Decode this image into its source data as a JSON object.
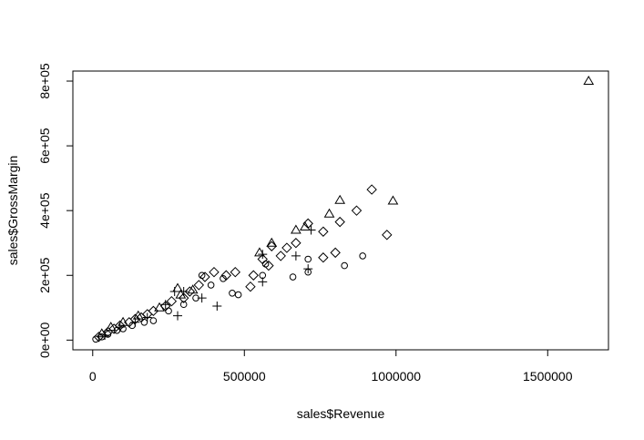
{
  "chart_data": {
    "type": "scatter",
    "x_label": "sales$Revenue",
    "y_label": "sales$GrossMargin",
    "xlim": [
      -65400,
      1700400
    ],
    "ylim": [
      -30000,
      831000
    ],
    "xticks": [
      0,
      500000,
      1000000,
      1500000
    ],
    "yticks": [
      {
        "value": 0,
        "label": "0e+00"
      },
      {
        "value": 200000,
        "label": "2e+05"
      },
      {
        "value": 400000,
        "label": "4e+05"
      },
      {
        "value": 600000,
        "label": "6e+05"
      },
      {
        "value": 800000,
        "label": "8e+05"
      }
    ],
    "color": "#000000",
    "series": [
      {
        "marker": "triangle",
        "x": [
          1635000,
          990000,
          815000,
          780000,
          700000,
          670000,
          590000,
          550000,
          330000,
          290000,
          280000,
          220000,
          150000,
          100000,
          60000,
          30000
        ],
        "y": [
          800000,
          430000,
          432000,
          390000,
          350000,
          340000,
          300000,
          270000,
          155000,
          140000,
          160000,
          100000,
          75000,
          55000,
          40000,
          20000
        ]
      },
      {
        "marker": "diamond",
        "x": [
          920000,
          970000,
          870000,
          815000,
          800000,
          760000,
          760000,
          710000,
          670000,
          640000,
          620000,
          590000,
          580000,
          560000,
          530000,
          520000,
          470000,
          440000,
          400000,
          370000,
          350000,
          320000,
          300000,
          260000,
          240000,
          200000,
          180000,
          160000,
          140000,
          120000,
          90000,
          70000,
          50000,
          20000
        ],
        "y": [
          465000,
          325000,
          400000,
          365000,
          270000,
          335000,
          255000,
          360000,
          300000,
          285000,
          260000,
          290000,
          230000,
          250000,
          200000,
          165000,
          210000,
          200000,
          210000,
          195000,
          170000,
          150000,
          130000,
          120000,
          105000,
          90000,
          80000,
          70000,
          65000,
          55000,
          45000,
          35000,
          25000,
          10000
        ]
      },
      {
        "marker": "circle",
        "x": [
          890000,
          830000,
          710000,
          710000,
          660000,
          570000,
          560000,
          480000,
          460000,
          430000,
          390000,
          360000,
          340000,
          300000,
          250000,
          200000,
          170000,
          130000,
          100000,
          80000,
          50000,
          30000,
          10000
        ],
        "y": [
          260000,
          230000,
          210000,
          250000,
          195000,
          235000,
          200000,
          140000,
          145000,
          190000,
          170000,
          200000,
          130000,
          110000,
          90000,
          60000,
          55000,
          45000,
          35000,
          30000,
          18000,
          10000,
          3000
        ]
      },
      {
        "marker": "plus",
        "x": [
          720000,
          710000,
          670000,
          560000,
          560000,
          410000,
          360000,
          300000,
          280000,
          270000,
          240000,
          180000,
          140000,
          90000,
          40000
        ],
        "y": [
          340000,
          220000,
          260000,
          265000,
          180000,
          105000,
          130000,
          150000,
          75000,
          150000,
          110000,
          70000,
          55000,
          40000,
          15000
        ]
      }
    ]
  }
}
